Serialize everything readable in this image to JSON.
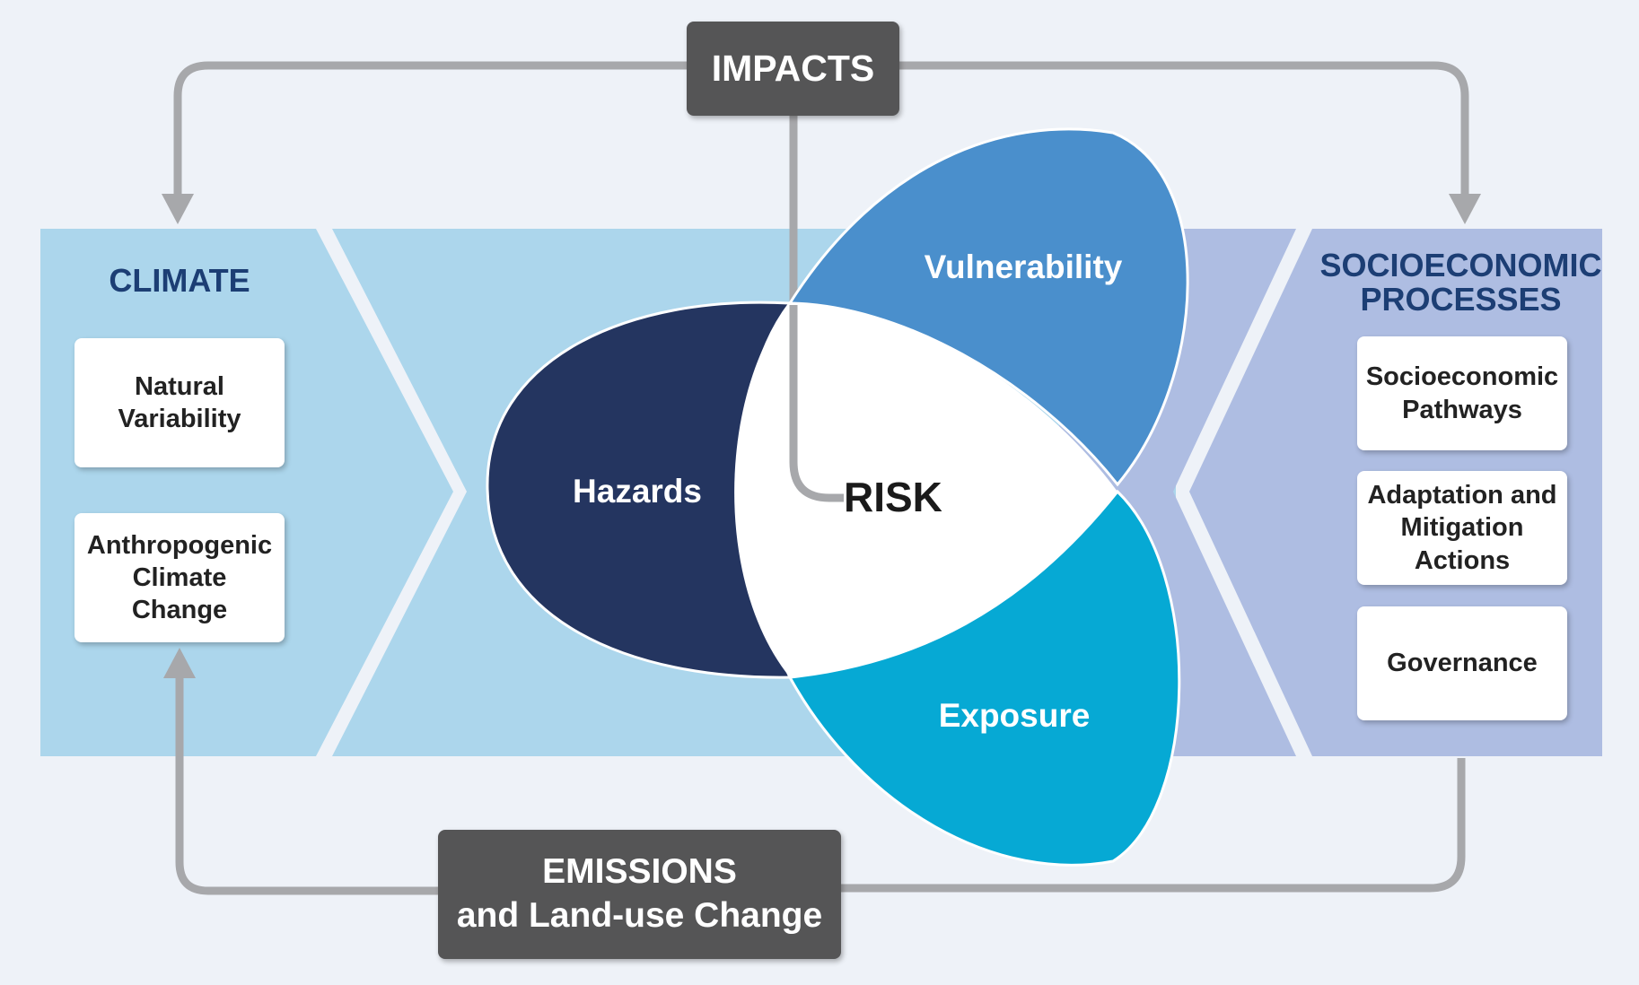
{
  "impacts": {
    "label": "IMPACTS"
  },
  "emissions": {
    "line1": "EMISSIONS",
    "line2": "and Land-use Change"
  },
  "climate": {
    "title": "CLIMATE",
    "items": [
      "Natural Variability",
      "Anthropogenic Climate Change"
    ]
  },
  "socioeconomic": {
    "title_line1": "SOCIOECONOMIC",
    "title_line2": "PROCESSES",
    "items": [
      "Socioeconomic Pathways",
      "Adaptation and Mitigation Actions",
      "Governance"
    ]
  },
  "risk": {
    "center": "RISK",
    "hazards": "Hazards",
    "vulnerability": "Vulnerability",
    "exposure": "Exposure"
  },
  "colors": {
    "background": "#eef2f8",
    "climate_panel": "#acd6ec",
    "socio_panel": "#aebde2",
    "hazards": "#243560",
    "vulnerability": "#4a8fcc",
    "exposure": "#06a9d4",
    "connector": "#a7a8ab",
    "dark_box": "#555556",
    "title_text": "#1c3e74"
  }
}
